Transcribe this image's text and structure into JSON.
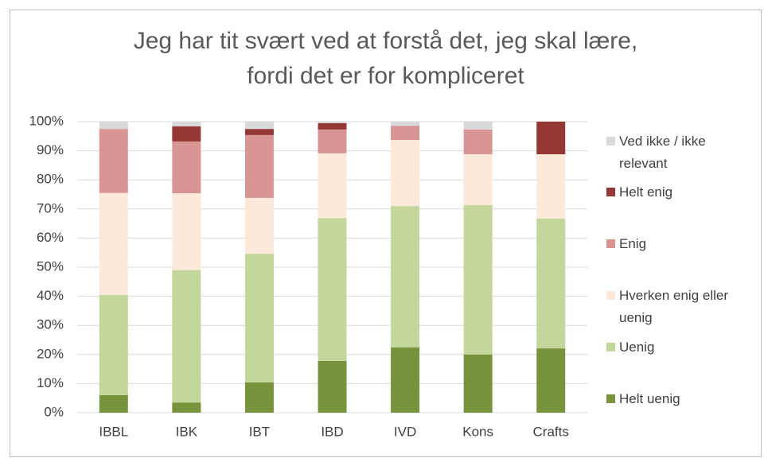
{
  "chart_data": {
    "type": "stacked_bar",
    "title": "Jeg har tit svært ved at forstå det, jeg skal lære,\nfordi det er for kompliceret",
    "categories": [
      "IBBL",
      "IBK",
      "IBT",
      "IBD",
      "IVD",
      "Kons",
      "Crafts"
    ],
    "series": [
      {
        "name": "Helt uenig",
        "color": "#77933c",
        "values": [
          6,
          3.5,
          10.4,
          17.8,
          22.4,
          20,
          22.1
        ]
      },
      {
        "name": "Uenig",
        "color": "#c3d69b",
        "values": [
          34.5,
          45.5,
          44.2,
          49.1,
          48.6,
          51.3,
          44.6
        ]
      },
      {
        "name": "Hverken enig eller uenig",
        "color": "#fde9d9",
        "values": [
          35,
          26.4,
          19.2,
          22.2,
          22.7,
          17.5,
          22.1
        ]
      },
      {
        "name": "Enig",
        "color": "#d99594",
        "values": [
          22,
          17.8,
          21.6,
          8.2,
          4.9,
          8.5,
          0
        ]
      },
      {
        "name": "Helt enig",
        "color": "#953735",
        "values": [
          0,
          5.2,
          2.1,
          2.2,
          0,
          0,
          11.2
        ]
      },
      {
        "name": "Ved ikke / ikke relevant",
        "color": "#d9d9d9",
        "values": [
          2.5,
          1.6,
          2.5,
          0.5,
          1.4,
          2.7,
          0
        ]
      }
    ],
    "ylim": [
      0,
      100
    ],
    "yticks": [
      {
        "value": 0,
        "label": "0%"
      },
      {
        "value": 10,
        "label": "10%"
      },
      {
        "value": 20,
        "label": "20%"
      },
      {
        "value": 30,
        "label": "30%"
      },
      {
        "value": 40,
        "label": "40%"
      },
      {
        "value": 50,
        "label": "50%"
      },
      {
        "value": 60,
        "label": "60%"
      },
      {
        "value": 70,
        "label": "70%"
      },
      {
        "value": 80,
        "label": "80%"
      },
      {
        "value": 90,
        "label": "90%"
      },
      {
        "value": 100,
        "label": "100%"
      }
    ],
    "grid": true,
    "legend": "right"
  }
}
